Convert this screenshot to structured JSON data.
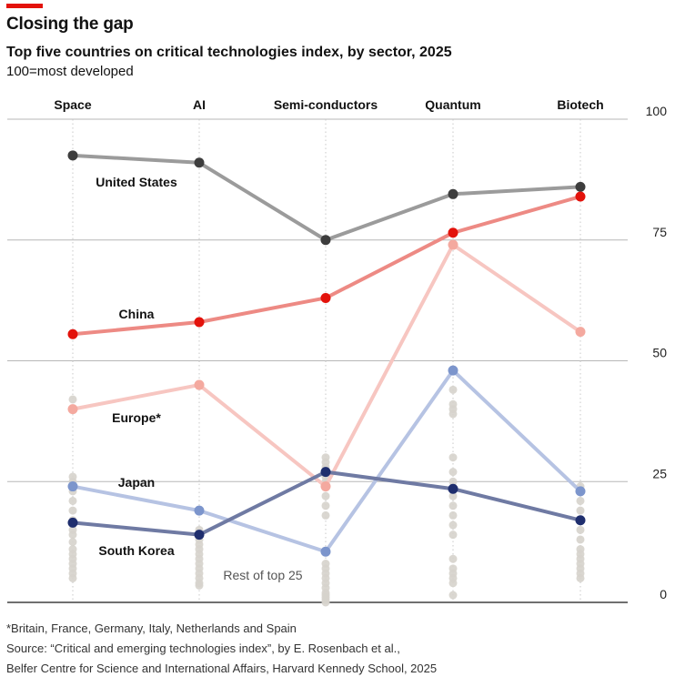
{
  "header": {
    "title": "Closing the gap",
    "subtitle": "Top five countries on critical technologies index, by sector, 2025",
    "unit_note": "100=most developed"
  },
  "footer": {
    "note": "*Britain, France, Germany, Italy, Netherlands and Spain",
    "source_line1": "Source: “Critical and emerging technologies index”, by E. Rosenbach et al.,",
    "source_line2": "Belfer Centre for Science and International Affairs, Harvard Kennedy School, 2025"
  },
  "colors": {
    "accent": "#e3120b",
    "united_states": "#9b9b9b",
    "united_states_dot": "#3d3d3d",
    "china": "#ed8a84",
    "china_dot": "#e3120b",
    "europe": "#f7c6c1",
    "europe_dot": "#f4a99f",
    "japan": "#b6c3e3",
    "japan_dot": "#7c95cc",
    "south_korea": "#6f7aa3",
    "south_korea_dot": "#1f2e6e",
    "rest": "#d6d3cc"
  },
  "chart_data": {
    "type": "line",
    "title": "Top five countries on critical technologies index, by sector, 2025",
    "subtitle": "100=most developed",
    "categories": [
      "Space",
      "AI",
      "Semi-conductors",
      "Quantum",
      "Biotech"
    ],
    "ylim": [
      0,
      100
    ],
    "yticks": [
      0,
      25,
      50,
      75,
      100
    ],
    "grid": true,
    "series": [
      {
        "name": "United States",
        "key": "united_states",
        "values": [
          92.5,
          91,
          75,
          84.5,
          86
        ]
      },
      {
        "name": "China",
        "key": "china",
        "values": [
          55.5,
          58,
          63,
          76.5,
          84
        ]
      },
      {
        "name": "Europe*",
        "key": "europe",
        "values": [
          40,
          45,
          24,
          74,
          56
        ]
      },
      {
        "name": "Japan",
        "key": "japan",
        "values": [
          24,
          19,
          10.5,
          48,
          23
        ]
      },
      {
        "name": "South Korea",
        "key": "south_korea",
        "values": [
          16.5,
          14,
          27,
          23.5,
          17
        ]
      }
    ],
    "rest_label": "Rest of top 25",
    "rest": [
      [
        42,
        26,
        25,
        23,
        21,
        19,
        17,
        15,
        14,
        12.5,
        11,
        10,
        9,
        8,
        7,
        6,
        5
      ],
      [
        15,
        14,
        13,
        12,
        11,
        10,
        9,
        8,
        7,
        6,
        5,
        4,
        3.5
      ],
      [
        30,
        29,
        28,
        26,
        25,
        22,
        20,
        18,
        8,
        7,
        6,
        5,
        4,
        3,
        2,
        1.5,
        1,
        0.5,
        0
      ],
      [
        44,
        41,
        40,
        39,
        30,
        27,
        25,
        22,
        20,
        18,
        16,
        14,
        9,
        7,
        6,
        5,
        4,
        1.5
      ],
      [
        24,
        21,
        19,
        17,
        15,
        13,
        11,
        10,
        9,
        8,
        7,
        6,
        5
      ]
    ]
  }
}
